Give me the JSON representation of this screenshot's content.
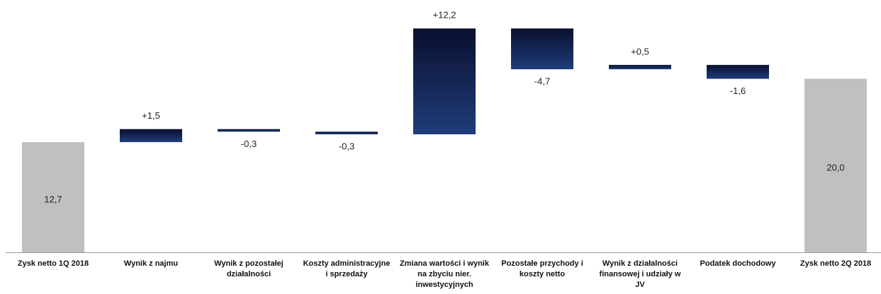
{
  "chart_data": {
    "type": "waterfall",
    "categories": [
      "Zysk netto 1Q 2018",
      "Wynik z najmu",
      "Wynik z pozostałej działalności",
      "Koszty administracyjne i sprzedaży",
      "Zmiana wartości i wynik na zbyciu nier. inwestycyjnych",
      "Pozostałe przychody i koszty netto",
      "Wynik z działalności finansowej i udziały w JV",
      "Podatek dochodowy",
      "Zysk netto 2Q 2018"
    ],
    "values": [
      12.7,
      1.5,
      -0.3,
      -0.3,
      12.2,
      -4.7,
      0.5,
      -1.6,
      20.0
    ],
    "value_labels": [
      "12,7",
      "+1,5",
      "-0,3",
      "-0,3",
      "+12,2",
      "-4,7",
      "+0,5",
      "-1,6",
      "20,0"
    ],
    "measure": [
      "total",
      "relative",
      "relative",
      "relative",
      "relative",
      "relative",
      "relative",
      "relative",
      "total"
    ],
    "total_color": "#c0c0c0",
    "delta_color": "#1f3d7a",
    "ylim": [
      0,
      29
    ]
  }
}
